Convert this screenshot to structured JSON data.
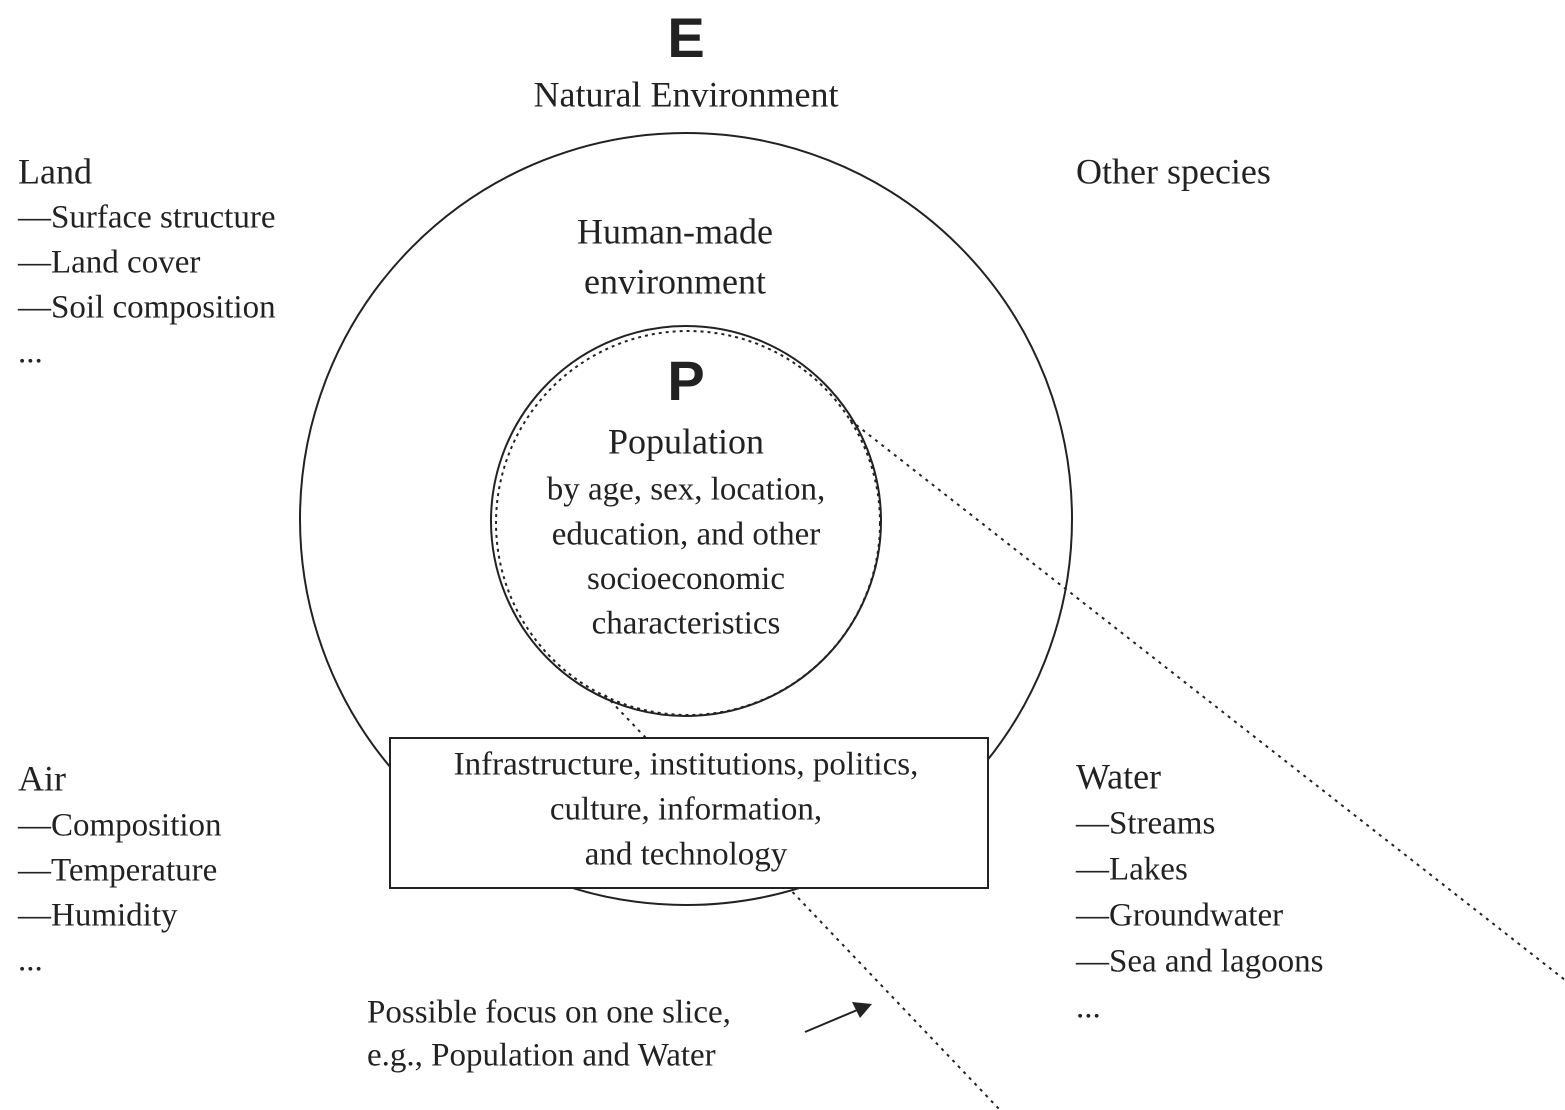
{
  "header": {
    "letter": "E",
    "title": "Natural Environment"
  },
  "land": {
    "title": "Land",
    "items": [
      "—Surface structure",
      "—Land cover",
      "—Soil composition",
      "..."
    ]
  },
  "other_species": "Other species",
  "air": {
    "title": "Air",
    "items": [
      "—Composition",
      "—Temperature",
      "—Humidity",
      "..."
    ]
  },
  "water": {
    "title": "Water",
    "items": [
      "—Streams",
      "—Lakes",
      "—Groundwater",
      "—Sea and lagoons",
      "..."
    ]
  },
  "human_made": [
    "Human-made",
    "environment"
  ],
  "population": {
    "letter": "P",
    "title": "Population",
    "lines": [
      "by age, sex, location,",
      "education, and other",
      "socioeconomic",
      "characteristics"
    ]
  },
  "box": [
    "Infrastructure, institutions, politics,",
    "culture, information,",
    "and technology"
  ],
  "note": [
    "Possible focus on one slice,",
    "e.g., Population and Water"
  ]
}
